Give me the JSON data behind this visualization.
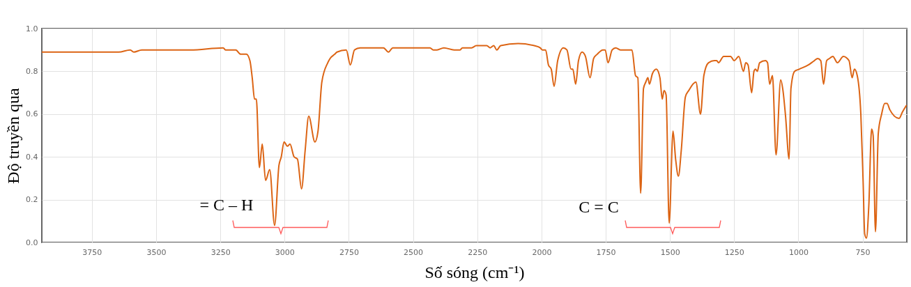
{
  "chart_data": {
    "type": "line",
    "xlabel": "Số sóng (cm⁻¹)",
    "ylabel": "Độ truyền qua",
    "xlim": [
      3945,
      578
    ],
    "ylim": [
      0,
      1
    ],
    "xticks": [
      3750,
      3500,
      3250,
      3000,
      2750,
      2500,
      2250,
      2000,
      1750,
      1500,
      1250,
      1000,
      750
    ],
    "yticks": [
      {
        "value": 0,
        "label": "0.0"
      },
      0.2,
      0.4,
      0.6,
      0.8,
      {
        "value": 1,
        "label": "1.0"
      }
    ],
    "grid": true,
    "annotations": [
      "= C – H",
      "C = C"
    ],
    "series": [
      {
        "color": "#dc6414",
        "x": [
          3945,
          3790,
          3746,
          3646,
          3601,
          3587,
          3556,
          3492,
          3366,
          3239,
          3230,
          3190,
          3171,
          3149,
          3135,
          3126,
          3117,
          3110,
          3098,
          3087,
          3074,
          3058,
          3039,
          3022,
          3013,
          3002,
          2989,
          2979,
          2963,
          2950,
          2934,
          2920,
          2906,
          2882,
          2870,
          2855,
          2832,
          2823,
          2805,
          2796,
          2760,
          2744,
          2728,
          2706,
          2642,
          2615,
          2596,
          2579,
          2434,
          2421,
          2407,
          2380,
          2340,
          2317,
          2308,
          2272,
          2254,
          2213,
          2200,
          2186,
          2174,
          2159,
          2091,
          2028,
          2005,
          1996,
          1984,
          1973,
          1962,
          1951,
          1937,
          1915,
          1901,
          1885,
          1878,
          1867,
          1856,
          1842,
          1829,
          1811,
          1797,
          1783,
          1761,
          1752,
          1741,
          1725,
          1711,
          1693,
          1648,
          1634,
          1625,
          1614,
          1603,
          1594,
          1586,
          1580,
          1568,
          1553,
          1539,
          1530,
          1523,
          1515,
          1503,
          1488,
          1478,
          1467,
          1456,
          1440,
          1427,
          1399,
          1381,
          1368,
          1350,
          1327,
          1318,
          1311,
          1291,
          1264,
          1250,
          1232,
          1214,
          1205,
          1196,
          1182,
          1173,
          1167,
          1160,
          1151,
          1128,
          1120,
          1112,
          1101,
          1087,
          1069,
          1060,
          1050,
          1036,
          1029,
          1015,
          997,
          961,
          938,
          925,
          913,
          902,
          890,
          879,
          866,
          848,
          825,
          803,
          791,
          782,
          771,
          757,
          748,
          742,
          735,
          726,
          715,
          709,
          700,
          689,
          676,
          664,
          655,
          644,
          626,
          608,
          595,
          580
        ],
        "values": [
          0.89,
          0.89,
          0.89,
          0.89,
          0.9,
          0.89,
          0.9,
          0.9,
          0.9,
          0.91,
          0.9,
          0.9,
          0.88,
          0.88,
          0.85,
          0.77,
          0.67,
          0.67,
          0.35,
          0.46,
          0.29,
          0.34,
          0.08,
          0.36,
          0.4,
          0.47,
          0.45,
          0.46,
          0.4,
          0.39,
          0.25,
          0.43,
          0.59,
          0.47,
          0.52,
          0.75,
          0.84,
          0.86,
          0.88,
          0.89,
          0.9,
          0.83,
          0.9,
          0.91,
          0.91,
          0.91,
          0.89,
          0.91,
          0.91,
          0.9,
          0.9,
          0.91,
          0.9,
          0.9,
          0.91,
          0.91,
          0.92,
          0.92,
          0.91,
          0.92,
          0.9,
          0.92,
          0.93,
          0.92,
          0.91,
          0.9,
          0.9,
          0.83,
          0.81,
          0.73,
          0.85,
          0.91,
          0.9,
          0.81,
          0.81,
          0.74,
          0.85,
          0.89,
          0.87,
          0.77,
          0.86,
          0.88,
          0.9,
          0.9,
          0.84,
          0.9,
          0.91,
          0.9,
          0.9,
          0.78,
          0.77,
          0.23,
          0.72,
          0.75,
          0.77,
          0.74,
          0.79,
          0.81,
          0.77,
          0.67,
          0.71,
          0.69,
          0.09,
          0.52,
          0.39,
          0.31,
          0.43,
          0.68,
          0.71,
          0.75,
          0.6,
          0.78,
          0.84,
          0.85,
          0.85,
          0.84,
          0.87,
          0.87,
          0.85,
          0.87,
          0.8,
          0.84,
          0.83,
          0.7,
          0.8,
          0.81,
          0.8,
          0.84,
          0.85,
          0.84,
          0.74,
          0.78,
          0.41,
          0.76,
          0.71,
          0.59,
          0.39,
          0.72,
          0.8,
          0.81,
          0.83,
          0.85,
          0.86,
          0.85,
          0.74,
          0.85,
          0.86,
          0.87,
          0.84,
          0.87,
          0.85,
          0.77,
          0.81,
          0.78,
          0.6,
          0.28,
          0.04,
          0.02,
          0.17,
          0.53,
          0.5,
          0.05,
          0.51,
          0.6,
          0.65,
          0.65,
          0.62,
          0.59,
          0.58,
          0.61,
          0.64
        ]
      }
    ]
  }
}
